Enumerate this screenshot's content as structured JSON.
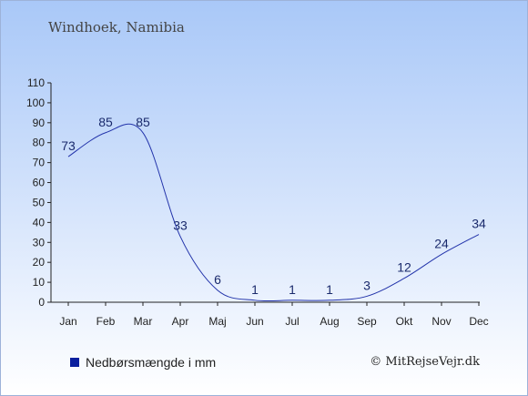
{
  "title": "Windhoek, Namibia",
  "legend": {
    "label": "Nedbørsmængde i mm",
    "color": "#0a1f9e"
  },
  "credit": "© MitRejseVejr.dk",
  "chart_data": {
    "type": "line",
    "title": "Windhoek, Namibia",
    "categories": [
      "Jan",
      "Feb",
      "Mar",
      "Apr",
      "Maj",
      "Jun",
      "Jul",
      "Aug",
      "Sep",
      "Okt",
      "Nov",
      "Dec"
    ],
    "series": [
      {
        "name": "Nedbørsmængde i mm",
        "values": [
          73,
          85,
          85,
          33,
          6,
          1,
          1,
          1,
          3,
          12,
          24,
          34
        ],
        "color": "#2233aa"
      }
    ],
    "ylim": [
      0,
      110
    ],
    "yticks": [
      0,
      10,
      20,
      30,
      40,
      50,
      60,
      70,
      80,
      90,
      100,
      110
    ],
    "grid": false,
    "legend_position": "bottom-left"
  }
}
